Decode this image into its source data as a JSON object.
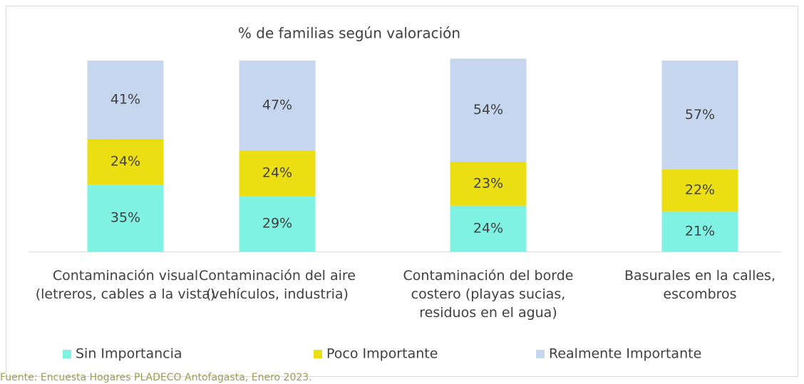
{
  "chart_data": {
    "type": "stacked_bar",
    "title": "% de familias según valoración",
    "categories": [
      "Contaminación visual (letreros, cables a la vista)",
      "Contaminación del aire (vehículos, industria)",
      "Contaminación del borde costero (playas sucias, residuos en el agua)",
      "Basurales en la calles, escombros"
    ],
    "series": [
      {
        "name": "Sin Importancia",
        "color": "#7ff2e3",
        "values": [
          35,
          29,
          24,
          21
        ],
        "value_labels": [
          "35%",
          "29%",
          "24%",
          "21%"
        ]
      },
      {
        "name": "Poco Importante",
        "color": "#ebdf14",
        "values": [
          24,
          24,
          23,
          22
        ],
        "value_labels": [
          "24%",
          "24%",
          "23%",
          "22%"
        ]
      },
      {
        "name": "Realmente Importante",
        "color": "#c6d6ef",
        "values": [
          41,
          47,
          54,
          57
        ],
        "value_labels": [
          "41%",
          "47%",
          "54%",
          "57%"
        ]
      }
    ],
    "ylim": [
      0,
      100
    ],
    "legend": "bottom",
    "source": "Fuente: Encuesta Hogares PLADECO Antofagasta, Enero 2023."
  }
}
